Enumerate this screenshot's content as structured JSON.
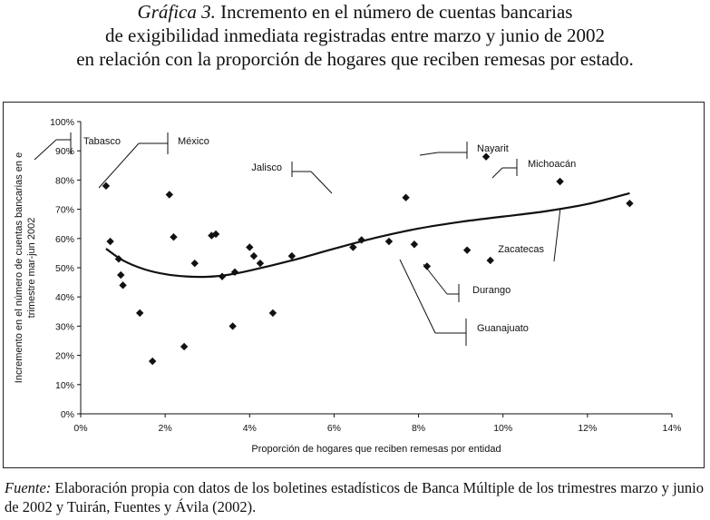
{
  "title": {
    "prefix": "Gráfica 3.",
    "line1_rest": "Incremento en el número de cuentas bancarias",
    "line2": "de exigibilidad inmediata registradas entre marzo y junio de 2002",
    "line3": "en relación con la proporción de hogares que reciben remesas por estado."
  },
  "source": {
    "label": "Fuente:",
    "text": "Elaboración propia con datos de los boletines estadísticos de Banca Múltiple de los trimestres marzo y junio de 2002 y Tuirán, Fuentes y Ávila (2002)."
  },
  "chart_data": {
    "type": "scatter",
    "xlabel": "Proporción de hogares que reciben remesas por entidad",
    "ylabel_lines": [
      "Incremento en el número de cuentas bancarias en e",
      "trimestre mar-jun 2002"
    ],
    "xlim": [
      0,
      14
    ],
    "ylim": [
      0,
      100
    ],
    "x_ticks": [
      0,
      2,
      4,
      6,
      8,
      10,
      12,
      14
    ],
    "x_tick_labels": [
      "0%",
      "2%",
      "4%",
      "6%",
      "8%",
      "10%",
      "12%",
      "14%"
    ],
    "y_ticks": [
      0,
      10,
      20,
      30,
      40,
      50,
      60,
      70,
      80,
      90,
      100
    ],
    "y_tick_labels": [
      "0%",
      "10%",
      "20%",
      "30%",
      "40%",
      "50%",
      "60%",
      "70%",
      "80%",
      "90%",
      "100%"
    ],
    "grid": false,
    "legend": "none",
    "marker": "diamond",
    "points": [
      {
        "x": 0.6,
        "y": 78
      },
      {
        "x": 0.7,
        "y": 59
      },
      {
        "x": 0.9,
        "y": 53
      },
      {
        "x": 0.95,
        "y": 47.5
      },
      {
        "x": 1.0,
        "y": 44
      },
      {
        "x": 1.4,
        "y": 34.5
      },
      {
        "x": 1.7,
        "y": 18
      },
      {
        "x": 2.1,
        "y": 75
      },
      {
        "x": 2.2,
        "y": 60.5
      },
      {
        "x": 2.45,
        "y": 23
      },
      {
        "x": 2.7,
        "y": 51.5
      },
      {
        "x": 3.1,
        "y": 61
      },
      {
        "x": 3.2,
        "y": 61.5
      },
      {
        "x": 3.35,
        "y": 47
      },
      {
        "x": 3.6,
        "y": 30
      },
      {
        "x": 3.65,
        "y": 48.5
      },
      {
        "x": 4.0,
        "y": 57
      },
      {
        "x": 4.1,
        "y": 54
      },
      {
        "x": 4.25,
        "y": 51.5
      },
      {
        "x": 4.55,
        "y": 34.5
      },
      {
        "x": 5.0,
        "y": 54
      },
      {
        "x": 6.45,
        "y": 57
      },
      {
        "x": 6.65,
        "y": 59.5
      },
      {
        "x": 7.3,
        "y": 59
      },
      {
        "x": 7.7,
        "y": 74
      },
      {
        "x": 7.9,
        "y": 58
      },
      {
        "x": 8.2,
        "y": 50.5
      },
      {
        "x": 9.15,
        "y": 56
      },
      {
        "x": 9.6,
        "y": 88
      },
      {
        "x": 9.7,
        "y": 52.5
      },
      {
        "x": 11.35,
        "y": 79.5
      },
      {
        "x": 13.0,
        "y": 72
      }
    ],
    "trend_line": [
      {
        "x": 0.6,
        "y": 56.5
      },
      {
        "x": 1.0,
        "y": 52.5
      },
      {
        "x": 1.5,
        "y": 49.5
      },
      {
        "x": 2.0,
        "y": 47.8
      },
      {
        "x": 2.5,
        "y": 47.0
      },
      {
        "x": 3.0,
        "y": 46.9
      },
      {
        "x": 3.5,
        "y": 47.6
      },
      {
        "x": 4.0,
        "y": 49.0
      },
      {
        "x": 5.0,
        "y": 52.5
      },
      {
        "x": 6.0,
        "y": 56.5
      },
      {
        "x": 7.0,
        "y": 60.3
      },
      {
        "x": 8.0,
        "y": 63.4
      },
      {
        "x": 9.0,
        "y": 65.7
      },
      {
        "x": 10.0,
        "y": 67.5
      },
      {
        "x": 11.0,
        "y": 69.3
      },
      {
        "x": 12.0,
        "y": 71.8
      },
      {
        "x": 13.0,
        "y": 75.5
      }
    ],
    "annotations": [
      {
        "label": "Tabasco",
        "x": 0.6,
        "y": 78
      },
      {
        "label": "México",
        "x": 2.1,
        "y": 75
      },
      {
        "label": "Jalisco",
        "x": 7.7,
        "y": 74
      },
      {
        "label": "Nayarit",
        "x": 9.6,
        "y": 88
      },
      {
        "label": "Michoacán",
        "x": 11.35,
        "y": 79.5
      },
      {
        "label": "Zacatecas",
        "x": 13.0,
        "y": 72
      },
      {
        "label": "Durango",
        "x": 9.7,
        "y": 52.5
      },
      {
        "label": "Guanajuato",
        "x": 9.15,
        "y": 56
      }
    ]
  }
}
